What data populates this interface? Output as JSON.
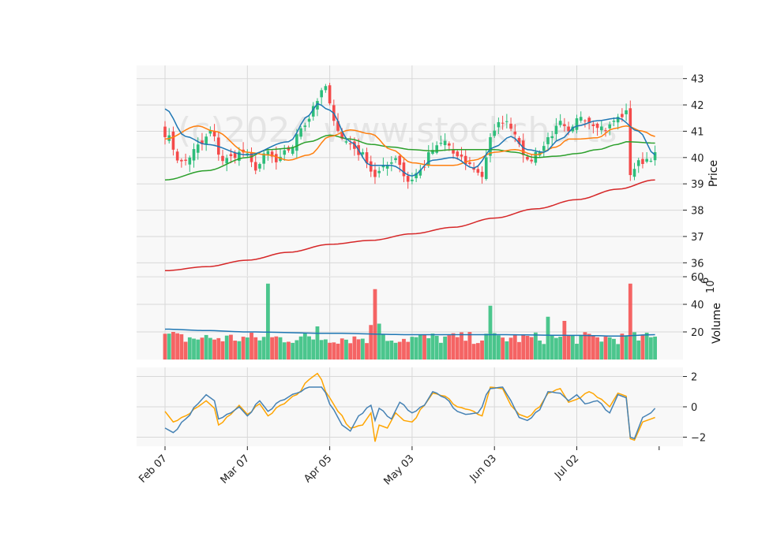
{
  "watermark": "(c)2024 www.stockcharts",
  "chart_data": {
    "type": "candlestick",
    "title": "",
    "x_ticks": [
      "Feb 07",
      "Mar 07",
      "Apr 05",
      "May 03",
      "Jun 03",
      "Jul 02"
    ],
    "x_tick_index": [
      0,
      20,
      40,
      60,
      80,
      100
    ],
    "n_bars": 120,
    "panels": {
      "price": {
        "ylabel": "Price",
        "ylim": [
          35.5,
          43.5
        ],
        "yticks": [
          36,
          37,
          38,
          39,
          40,
          41,
          42,
          43
        ],
        "ytick_labels": [
          "36",
          "37",
          "38",
          "39",
          "40",
          "41",
          "42",
          "43"
        ]
      },
      "volume": {
        "ylabel": "Volume",
        "ylabel_exponent": "6",
        "ylim": [
          0,
          60
        ],
        "yticks": [
          20,
          40,
          60
        ],
        "ytick_labels": [
          "20",
          "40",
          "60"
        ]
      },
      "oscillator": {
        "ylim": [
          -2.6,
          2.6
        ],
        "yticks": [
          -2,
          0,
          2
        ],
        "ytick_labels": [
          "−2",
          "0",
          "2"
        ]
      }
    },
    "colors": {
      "up": "#2dbd7a",
      "down": "#f44a4a",
      "ma_short": "#1f77b4",
      "ma_mid": "#ff7f0e",
      "ma_long": "#2ca02c",
      "ma_200": "#d62728",
      "vol_ma": "#1f77b4",
      "osc1": "#4682b4",
      "osc2": "#ffa500",
      "background": "#f8f8f8",
      "grid": "#d8d8d8"
    },
    "close_anchors": [
      [
        0,
        40.9
      ],
      [
        4,
        39.8
      ],
      [
        9,
        40.5
      ],
      [
        11,
        41.0
      ],
      [
        14,
        39.9
      ],
      [
        19,
        40.2
      ],
      [
        22,
        39.6
      ],
      [
        25,
        40.2
      ],
      [
        27,
        39.8
      ],
      [
        30,
        40.3
      ],
      [
        34,
        41.3
      ],
      [
        37,
        42.2
      ],
      [
        39,
        42.7
      ],
      [
        41,
        41.3
      ],
      [
        44,
        40.6
      ],
      [
        48,
        40.1
      ],
      [
        51,
        39.3
      ],
      [
        53,
        39.6
      ],
      [
        56,
        40.0
      ],
      [
        59,
        39.1
      ],
      [
        62,
        39.5
      ],
      [
        65,
        40.3
      ],
      [
        68,
        40.6
      ],
      [
        71,
        40.0
      ],
      [
        74,
        39.7
      ],
      [
        77,
        39.3
      ],
      [
        79,
        40.8
      ],
      [
        82,
        41.4
      ],
      [
        84,
        41.2
      ],
      [
        86,
        40.6
      ],
      [
        88,
        39.8
      ],
      [
        91,
        40.3
      ],
      [
        94,
        40.9
      ],
      [
        96,
        41.3
      ],
      [
        98,
        40.9
      ],
      [
        101,
        41.6
      ],
      [
        104,
        41.3
      ],
      [
        107,
        41.1
      ],
      [
        110,
        41.5
      ],
      [
        112,
        41.7
      ],
      [
        113,
        39.4
      ],
      [
        115,
        39.8
      ],
      [
        118,
        40.0
      ],
      [
        119,
        40.1
      ]
    ],
    "ma_short_anchors": [
      [
        0,
        41.85
      ],
      [
        5,
        40.8
      ],
      [
        10,
        40.5
      ],
      [
        20,
        40.1
      ],
      [
        30,
        40.6
      ],
      [
        35,
        41.6
      ],
      [
        37,
        42.05
      ],
      [
        40,
        41.8
      ],
      [
        45,
        40.6
      ],
      [
        50,
        39.7
      ],
      [
        55,
        39.7
      ],
      [
        60,
        39.3
      ],
      [
        65,
        39.9
      ],
      [
        70,
        40.0
      ],
      [
        75,
        39.6
      ],
      [
        80,
        40.4
      ],
      [
        84,
        40.8
      ],
      [
        88,
        40.3
      ],
      [
        92,
        40.2
      ],
      [
        96,
        40.7
      ],
      [
        100,
        41.2
      ],
      [
        105,
        41.4
      ],
      [
        110,
        41.5
      ],
      [
        115,
        41.0
      ],
      [
        119,
        40.1
      ]
    ],
    "ma_mid_anchors": [
      [
        0,
        40.7
      ],
      [
        8,
        41.2
      ],
      [
        12,
        41.0
      ],
      [
        20,
        40.2
      ],
      [
        25,
        40.1
      ],
      [
        30,
        39.9
      ],
      [
        35,
        40.1
      ],
      [
        40,
        40.8
      ],
      [
        45,
        41.05
      ],
      [
        50,
        40.9
      ],
      [
        55,
        40.3
      ],
      [
        60,
        39.8
      ],
      [
        65,
        39.7
      ],
      [
        70,
        39.7
      ],
      [
        75,
        39.9
      ],
      [
        80,
        40.2
      ],
      [
        85,
        40.3
      ],
      [
        90,
        40.1
      ],
      [
        95,
        40.4
      ],
      [
        98,
        40.7
      ],
      [
        100,
        40.7
      ],
      [
        105,
        40.75
      ],
      [
        109,
        41.1
      ],
      [
        112,
        41.2
      ],
      [
        116,
        41.0
      ],
      [
        119,
        40.8
      ]
    ],
    "ma_long_anchors": [
      [
        0,
        39.15
      ],
      [
        10,
        39.5
      ],
      [
        20,
        40.0
      ],
      [
        25,
        40.3
      ],
      [
        30,
        40.35
      ],
      [
        35,
        40.6
      ],
      [
        40,
        40.85
      ],
      [
        45,
        40.7
      ],
      [
        50,
        40.5
      ],
      [
        55,
        40.4
      ],
      [
        60,
        40.3
      ],
      [
        65,
        40.25
      ],
      [
        70,
        40.3
      ],
      [
        75,
        40.3
      ],
      [
        80,
        40.3
      ],
      [
        85,
        40.2
      ],
      [
        90,
        40.0
      ],
      [
        95,
        40.05
      ],
      [
        100,
        40.15
      ],
      [
        105,
        40.3
      ],
      [
        110,
        40.5
      ],
      [
        112,
        40.6
      ],
      [
        119,
        40.55
      ]
    ],
    "ma_200_anchors": [
      [
        0,
        35.7
      ],
      [
        10,
        35.85
      ],
      [
        20,
        36.1
      ],
      [
        30,
        36.4
      ],
      [
        40,
        36.7
      ],
      [
        50,
        36.85
      ],
      [
        60,
        37.1
      ],
      [
        70,
        37.35
      ],
      [
        80,
        37.7
      ],
      [
        90,
        38.05
      ],
      [
        100,
        38.4
      ],
      [
        110,
        38.8
      ],
      [
        119,
        39.15
      ]
    ],
    "volume_spikes": [
      [
        25,
        55
      ],
      [
        51,
        51
      ],
      [
        113,
        55
      ],
      [
        79,
        39
      ],
      [
        97,
        28
      ],
      [
        93,
        31
      ],
      [
        37,
        24
      ],
      [
        2,
        20
      ],
      [
        3,
        19
      ],
      [
        50,
        25
      ],
      [
        52,
        26
      ]
    ],
    "volume_ma_anchors": [
      [
        0,
        22
      ],
      [
        10,
        21
      ],
      [
        20,
        20
      ],
      [
        40,
        19
      ],
      [
        60,
        18
      ],
      [
        80,
        18
      ],
      [
        100,
        17.5
      ],
      [
        110,
        17
      ],
      [
        119,
        18
      ]
    ],
    "osc1_anchors": [
      [
        0,
        -1.4
      ],
      [
        2,
        -1.7
      ],
      [
        5,
        -0.8
      ],
      [
        8,
        0.2
      ],
      [
        10,
        0.8
      ],
      [
        12,
        0.4
      ],
      [
        13,
        -0.8
      ],
      [
        16,
        -0.4
      ],
      [
        18,
        0.0
      ],
      [
        20,
        -0.6
      ],
      [
        23,
        0.4
      ],
      [
        25,
        -0.3
      ],
      [
        28,
        0.4
      ],
      [
        32,
        0.9
      ],
      [
        35,
        1.3
      ],
      [
        38,
        1.3
      ],
      [
        41,
        -0.2
      ],
      [
        43,
        -1.2
      ],
      [
        45,
        -1.6
      ],
      [
        47,
        -0.6
      ],
      [
        50,
        0.1
      ],
      [
        51,
        -0.9
      ],
      [
        52,
        -0.1
      ],
      [
        55,
        -0.8
      ],
      [
        57,
        0.3
      ],
      [
        60,
        -0.4
      ],
      [
        63,
        0.1
      ],
      [
        65,
        1.0
      ],
      [
        68,
        0.6
      ],
      [
        71,
        -0.3
      ],
      [
        73,
        -0.5
      ],
      [
        76,
        -0.4
      ],
      [
        79,
        1.2
      ],
      [
        82,
        1.3
      ],
      [
        84,
        0.4
      ],
      [
        86,
        -0.7
      ],
      [
        88,
        -0.9
      ],
      [
        91,
        -0.2
      ],
      [
        93,
        1.0
      ],
      [
        96,
        0.9
      ],
      [
        98,
        0.4
      ],
      [
        100,
        0.8
      ],
      [
        102,
        0.2
      ],
      [
        105,
        0.4
      ],
      [
        108,
        -0.4
      ],
      [
        110,
        0.8
      ],
      [
        112,
        0.6
      ],
      [
        113,
        -2.0
      ],
      [
        114,
        -2.1
      ],
      [
        116,
        -0.7
      ],
      [
        118,
        -0.4
      ],
      [
        119,
        -0.1
      ]
    ],
    "osc2_anchors": [
      [
        0,
        -0.3
      ],
      [
        2,
        -1.0
      ],
      [
        5,
        -0.6
      ],
      [
        8,
        0.0
      ],
      [
        10,
        0.4
      ],
      [
        12,
        -0.1
      ],
      [
        13,
        -1.2
      ],
      [
        16,
        -0.5
      ],
      [
        18,
        0.1
      ],
      [
        20,
        -0.5
      ],
      [
        23,
        0.2
      ],
      [
        25,
        -0.6
      ],
      [
        28,
        0.1
      ],
      [
        32,
        0.8
      ],
      [
        35,
        1.8
      ],
      [
        37,
        2.2
      ],
      [
        40,
        0.6
      ],
      [
        42,
        -0.3
      ],
      [
        45,
        -1.4
      ],
      [
        48,
        -1.2
      ],
      [
        50,
        -0.4
      ],
      [
        51,
        -2.3
      ],
      [
        52,
        -1.2
      ],
      [
        54,
        -1.4
      ],
      [
        56,
        -0.4
      ],
      [
        58,
        -0.9
      ],
      [
        60,
        -1.0
      ],
      [
        63,
        0.1
      ],
      [
        65,
        0.9
      ],
      [
        68,
        0.7
      ],
      [
        71,
        0.0
      ],
      [
        74,
        -0.2
      ],
      [
        77,
        -0.6
      ],
      [
        79,
        1.3
      ],
      [
        82,
        1.2
      ],
      [
        84,
        0.1
      ],
      [
        86,
        -0.5
      ],
      [
        88,
        -0.7
      ],
      [
        91,
        0.0
      ],
      [
        93,
        0.9
      ],
      [
        96,
        1.2
      ],
      [
        98,
        0.3
      ],
      [
        100,
        0.5
      ],
      [
        103,
        1.0
      ],
      [
        106,
        0.5
      ],
      [
        108,
        0.0
      ],
      [
        110,
        0.9
      ],
      [
        112,
        0.7
      ],
      [
        113,
        -2.1
      ],
      [
        114,
        -2.2
      ],
      [
        116,
        -1.0
      ],
      [
        118,
        -0.8
      ],
      [
        119,
        -0.7
      ]
    ]
  }
}
